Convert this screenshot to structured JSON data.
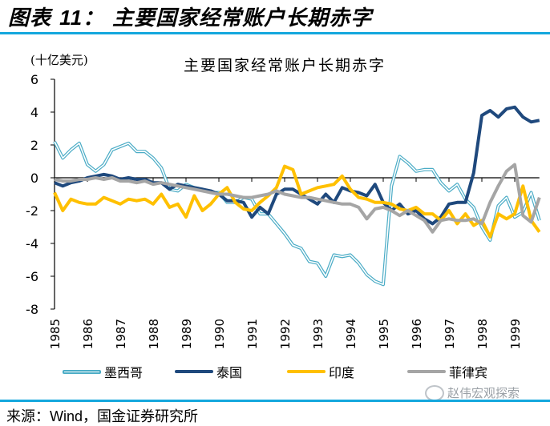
{
  "figure": {
    "label": "图表",
    "number": "11",
    "separator": "：",
    "title": "主要国家经常账户长期赤字"
  },
  "chart_data": {
    "type": "line",
    "title": "主要国家经常账户长期赤字",
    "ylabel": "(十亿美元)",
    "xlabel": "",
    "ylim": [
      -8,
      6
    ],
    "yticks": [
      6,
      4,
      2,
      0,
      -2,
      -4,
      -6,
      -8
    ],
    "x_tick_labels": [
      "1985",
      "1986",
      "1987",
      "1988",
      "1989",
      "1990",
      "1991",
      "1992",
      "1993",
      "1994",
      "1995",
      "1996",
      "1997",
      "1998",
      "1999"
    ],
    "frequency": "quarterly",
    "x_start": "1985Q1",
    "x_end": "1999Q4",
    "grid": false,
    "legend_position": "bottom",
    "series": [
      {
        "name": "墨西哥",
        "color": "#4bacc6",
        "style": "double",
        "values": [
          2.2,
          1.2,
          1.7,
          2.1,
          0.8,
          0.4,
          0.8,
          1.7,
          1.9,
          2.1,
          1.6,
          1.6,
          1.2,
          0.6,
          -0.7,
          -0.8,
          -0.4,
          -0.6,
          -0.7,
          -0.9,
          -0.9,
          -1.5,
          -1.5,
          -1.2,
          -1.3,
          -2.2,
          -2.2,
          -2.8,
          -3.4,
          -4.1,
          -4.3,
          -5.1,
          -5.2,
          -6.0,
          -4.7,
          -4.8,
          -4.7,
          -5.2,
          -5.9,
          -6.3,
          -6.5,
          -0.5,
          1.3,
          0.9,
          0.4,
          0.5,
          0.5,
          -0.3,
          -0.8,
          -0.4,
          -1.3,
          -1.8,
          -3.0,
          -3.8,
          -1.7,
          -1.2,
          -2.4,
          -2.1,
          -0.9,
          -2.6
        ]
      },
      {
        "name": "泰国",
        "color": "#1f497d",
        "style": "solid",
        "values": [
          -0.3,
          -0.5,
          -0.3,
          -0.2,
          0.0,
          0.1,
          0.2,
          0.1,
          -0.1,
          0.0,
          -0.1,
          -0.1,
          -0.3,
          -0.3,
          -0.7,
          -0.4,
          -0.5,
          -0.6,
          -0.7,
          -0.8,
          -1.0,
          -1.4,
          -1.4,
          -1.5,
          -2.4,
          -1.8,
          -2.2,
          -1.0,
          -0.7,
          -0.7,
          -1.0,
          -1.3,
          -1.6,
          -1.0,
          -1.5,
          -0.6,
          -0.8,
          -0.9,
          -1.1,
          -0.4,
          -1.5,
          -2.0,
          -1.6,
          -2.2,
          -2.0,
          -2.5,
          -2.8,
          -2.4,
          -1.6,
          -1.5,
          -1.5,
          0.3,
          3.8,
          4.1,
          3.7,
          4.2,
          4.3,
          3.7,
          3.4,
          3.5
        ]
      },
      {
        "name": "印度",
        "color": "#ffc000",
        "style": "solid",
        "values": [
          -0.9,
          -2.0,
          -1.3,
          -1.5,
          -1.6,
          -1.6,
          -1.2,
          -1.4,
          -1.6,
          -1.3,
          -1.4,
          -1.3,
          -1.6,
          -1.0,
          -1.8,
          -1.6,
          -2.4,
          -1.1,
          -2.0,
          -1.6,
          -1.0,
          -0.6,
          -1.5,
          -1.9,
          -2.0,
          -1.5,
          -1.1,
          -0.6,
          0.7,
          0.5,
          -1.0,
          -0.8,
          -0.6,
          -0.5,
          -0.4,
          0.1,
          -0.7,
          -1.2,
          -1.3,
          -1.5,
          -1.5,
          -1.6,
          -1.9,
          -2.0,
          -1.8,
          -2.2,
          -2.2,
          -2.6,
          -2.0,
          -2.8,
          -2.2,
          -2.9,
          -2.6,
          -3.6,
          -2.2,
          -2.5,
          -2.2,
          -0.5,
          -2.6,
          -3.3
        ]
      },
      {
        "name": "菲律宾",
        "color": "#a5a5a5",
        "style": "solid",
        "values": [
          -0.1,
          -0.2,
          -0.2,
          -0.1,
          -0.1,
          0.0,
          -0.1,
          0.0,
          -0.2,
          -0.2,
          -0.3,
          -0.2,
          -0.4,
          -0.3,
          -0.4,
          -0.5,
          -0.6,
          -0.7,
          -0.8,
          -0.9,
          -1.0,
          -1.0,
          -1.1,
          -1.2,
          -1.2,
          -1.1,
          -1.0,
          -0.8,
          -1.0,
          -1.1,
          -1.2,
          -1.2,
          -1.3,
          -1.4,
          -1.5,
          -1.6,
          -1.6,
          -1.8,
          -2.5,
          -1.9,
          -1.8,
          -2.0,
          -2.3,
          -2.0,
          -2.3,
          -2.6,
          -3.3,
          -2.6,
          -2.5,
          -2.6,
          -2.6,
          -2.5,
          -2.8,
          -1.5,
          -0.5,
          0.4,
          0.8,
          -2.3,
          -2.7,
          -1.2
        ]
      }
    ]
  },
  "source": {
    "label": "来源：",
    "text_en": "Wind",
    "text_cn": "，国金证券研究所"
  },
  "watermark": {
    "text": "赵伟宏观探索"
  }
}
